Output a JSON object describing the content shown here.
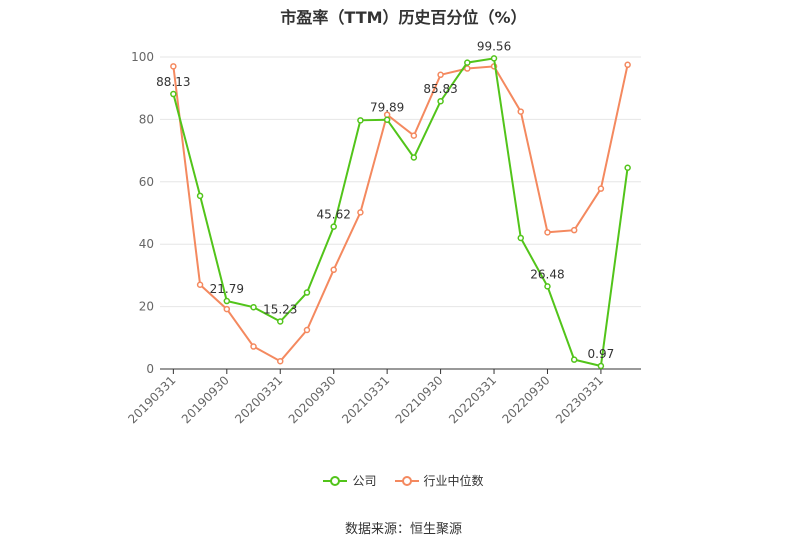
{
  "chart_data": {
    "type": "line",
    "title": "市盈率（TTM）历史百分位（%）",
    "xlabel": "",
    "ylabel": "",
    "ylim": [
      0,
      100
    ],
    "yticks": [
      0,
      20,
      40,
      60,
      80,
      100
    ],
    "x": [
      "20190331",
      "20190630",
      "20190930",
      "20191231",
      "20200331",
      "20200630",
      "20200930",
      "20201231",
      "20210331",
      "20210630",
      "20210930",
      "20211231",
      "20220331",
      "20220630",
      "20220930",
      "20221231",
      "20230331",
      "20230630"
    ],
    "xtick_labels": [
      "20190331",
      "20190930",
      "20200331",
      "20200930",
      "20210331",
      "20210930",
      "20220331",
      "20220930",
      "20230331"
    ],
    "grid": true,
    "legend_position": "bottom",
    "series": [
      {
        "name": "公司",
        "color": "#52c41a",
        "values": [
          88.13,
          55.5,
          21.79,
          19.8,
          15.23,
          24.5,
          45.62,
          79.7,
          79.89,
          67.8,
          85.83,
          98.2,
          99.56,
          42.0,
          26.48,
          3.0,
          0.97,
          64.5
        ],
        "labels": {
          "0": "88.13",
          "2": "21.79",
          "4": "15.23",
          "6": "45.62",
          "8": "79.89",
          "10": "85.83",
          "12": "99.56",
          "14": "26.48",
          "16": "0.97"
        }
      },
      {
        "name": "行业中位数",
        "color": "#f4895f",
        "values": [
          97.0,
          27.0,
          19.2,
          7.2,
          2.5,
          12.5,
          31.8,
          50.2,
          81.5,
          74.8,
          94.3,
          96.3,
          97.0,
          82.5,
          43.8,
          44.5,
          57.8,
          97.5
        ]
      }
    ]
  },
  "source": "数据来源：恒生聚源"
}
